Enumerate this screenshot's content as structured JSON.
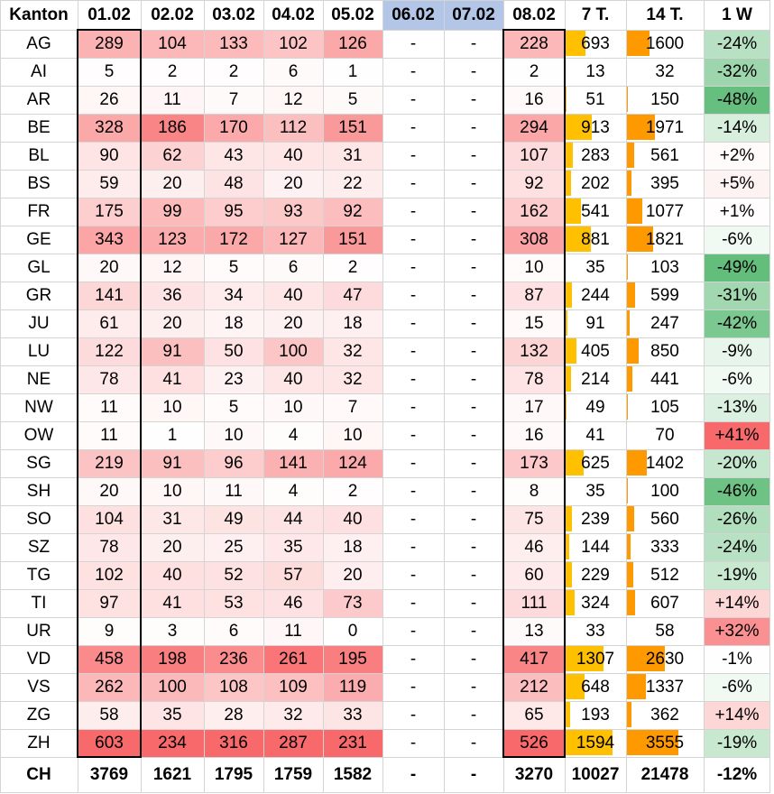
{
  "table": {
    "headers": [
      "Kanton",
      "01.02",
      "02.02",
      "03.02",
      "04.02",
      "05.02",
      "06.02",
      "07.02",
      "08.02",
      "7 T.",
      "14 T.",
      "1 W"
    ],
    "rows": [
      {
        "kanton": "AG",
        "d": [
          289,
          104,
          133,
          102,
          126,
          "-",
          "-",
          228
        ],
        "t7": 693,
        "t14": 1600,
        "w": "-24%"
      },
      {
        "kanton": "AI",
        "d": [
          5,
          2,
          2,
          6,
          1,
          "-",
          "-",
          2
        ],
        "t7": 13,
        "t14": 32,
        "w": "-32%"
      },
      {
        "kanton": "AR",
        "d": [
          26,
          11,
          7,
          12,
          5,
          "-",
          "-",
          16
        ],
        "t7": 51,
        "t14": 150,
        "w": "-48%"
      },
      {
        "kanton": "BE",
        "d": [
          328,
          186,
          170,
          112,
          151,
          "-",
          "-",
          294
        ],
        "t7": 913,
        "t14": 1971,
        "w": "-14%"
      },
      {
        "kanton": "BL",
        "d": [
          90,
          62,
          43,
          40,
          31,
          "-",
          "-",
          107
        ],
        "t7": 283,
        "t14": 561,
        "w": "+2%"
      },
      {
        "kanton": "BS",
        "d": [
          59,
          20,
          48,
          20,
          22,
          "-",
          "-",
          92
        ],
        "t7": 202,
        "t14": 395,
        "w": "+5%"
      },
      {
        "kanton": "FR",
        "d": [
          175,
          99,
          95,
          93,
          92,
          "-",
          "-",
          162
        ],
        "t7": 541,
        "t14": 1077,
        "w": "+1%"
      },
      {
        "kanton": "GE",
        "d": [
          343,
          123,
          172,
          127,
          151,
          "-",
          "-",
          308
        ],
        "t7": 881,
        "t14": 1821,
        "w": "-6%"
      },
      {
        "kanton": "GL",
        "d": [
          20,
          12,
          5,
          6,
          2,
          "-",
          "-",
          10
        ],
        "t7": 35,
        "t14": 103,
        "w": "-49%"
      },
      {
        "kanton": "GR",
        "d": [
          141,
          36,
          34,
          40,
          47,
          "-",
          "-",
          87
        ],
        "t7": 244,
        "t14": 599,
        "w": "-31%"
      },
      {
        "kanton": "JU",
        "d": [
          61,
          20,
          18,
          20,
          18,
          "-",
          "-",
          15
        ],
        "t7": 91,
        "t14": 247,
        "w": "-42%"
      },
      {
        "kanton": "LU",
        "d": [
          122,
          91,
          50,
          100,
          32,
          "-",
          "-",
          132
        ],
        "t7": 405,
        "t14": 850,
        "w": "-9%"
      },
      {
        "kanton": "NE",
        "d": [
          78,
          41,
          23,
          40,
          32,
          "-",
          "-",
          78
        ],
        "t7": 214,
        "t14": 441,
        "w": "-6%"
      },
      {
        "kanton": "NW",
        "d": [
          11,
          10,
          5,
          10,
          7,
          "-",
          "-",
          17
        ],
        "t7": 49,
        "t14": 105,
        "w": "-13%"
      },
      {
        "kanton": "OW",
        "d": [
          11,
          1,
          10,
          4,
          10,
          "-",
          "-",
          16
        ],
        "t7": 41,
        "t14": 70,
        "w": "+41%"
      },
      {
        "kanton": "SG",
        "d": [
          219,
          91,
          96,
          141,
          124,
          "-",
          "-",
          173
        ],
        "t7": 625,
        "t14": 1402,
        "w": "-20%"
      },
      {
        "kanton": "SH",
        "d": [
          20,
          10,
          11,
          4,
          2,
          "-",
          "-",
          8
        ],
        "t7": 35,
        "t14": 100,
        "w": "-46%"
      },
      {
        "kanton": "SO",
        "d": [
          104,
          31,
          49,
          44,
          40,
          "-",
          "-",
          75
        ],
        "t7": 239,
        "t14": 560,
        "w": "-26%"
      },
      {
        "kanton": "SZ",
        "d": [
          78,
          20,
          25,
          35,
          18,
          "-",
          "-",
          46
        ],
        "t7": 144,
        "t14": 333,
        "w": "-24%"
      },
      {
        "kanton": "TG",
        "d": [
          102,
          40,
          52,
          57,
          20,
          "-",
          "-",
          60
        ],
        "t7": 229,
        "t14": 512,
        "w": "-19%"
      },
      {
        "kanton": "TI",
        "d": [
          97,
          41,
          53,
          46,
          73,
          "-",
          "-",
          111
        ],
        "t7": 324,
        "t14": 607,
        "w": "+14%"
      },
      {
        "kanton": "UR",
        "d": [
          9,
          3,
          6,
          11,
          0,
          "-",
          "-",
          13
        ],
        "t7": 33,
        "t14": 58,
        "w": "+32%"
      },
      {
        "kanton": "VD",
        "d": [
          458,
          198,
          236,
          261,
          195,
          "-",
          "-",
          417
        ],
        "t7": 1307,
        "t14": 2630,
        "w": "-1%"
      },
      {
        "kanton": "VS",
        "d": [
          262,
          100,
          108,
          109,
          119,
          "-",
          "-",
          212
        ],
        "t7": 648,
        "t14": 1337,
        "w": "-6%"
      },
      {
        "kanton": "ZG",
        "d": [
          58,
          35,
          28,
          32,
          33,
          "-",
          "-",
          65
        ],
        "t7": 193,
        "t14": 362,
        "w": "+14%"
      },
      {
        "kanton": "ZH",
        "d": [
          603,
          234,
          316,
          287,
          231,
          "-",
          "-",
          526
        ],
        "t7": 1594,
        "t14": 3555,
        "w": "-19%"
      }
    ],
    "footer": {
      "kanton": "CH",
      "d": [
        3769,
        1621,
        1795,
        1759,
        1582,
        "-",
        "-",
        3270
      ],
      "t7": 10027,
      "t14": 21478,
      "w": "-12%"
    }
  },
  "chart_data": {
    "type": "table",
    "columns": [
      "Kanton",
      "01.02",
      "02.02",
      "03.02",
      "04.02",
      "05.02",
      "06.02",
      "07.02",
      "08.02",
      "7 T.",
      "14 T.",
      "1 W"
    ],
    "highlighted_header_columns": [
      "06.02",
      "07.02"
    ],
    "framed_columns": [
      "01.02",
      "08.02"
    ],
    "formatting": {
      "daily_columns": "heatmap (white to red)",
      "7 T.": "data bars",
      "14 T.": "data bars",
      "1 W": "color scale (green for decrease, red for increase)"
    }
  },
  "colors": {
    "heat_low": "#ffffff",
    "heat_high": "#f8696b",
    "bar_7": "#ffc000",
    "bar_14": "#ff9900",
    "neg_strong": "#63be7b",
    "pos_strong": "#f8696b",
    "header_highlight": "#b4c6e7",
    "gridline": "#d4d4d4",
    "frame": "#000000"
  }
}
